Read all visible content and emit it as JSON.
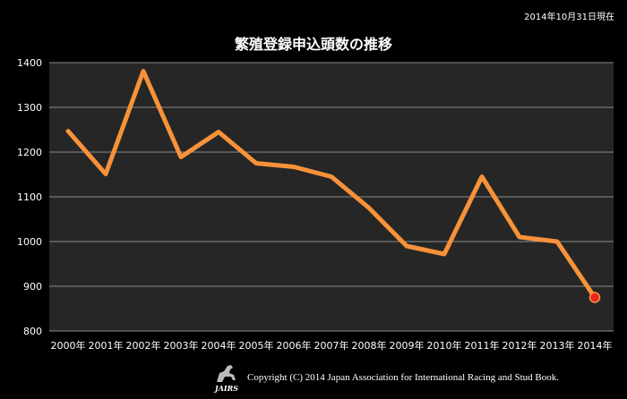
{
  "date_note": "2014年10月31日現在",
  "footer": {
    "logo_text": "JAIRS",
    "copyright": "Copyright (C) 2014 Japan Association for International Racing and Stud Book."
  },
  "colors": {
    "line": "#f7923a",
    "marker": "#e8251f",
    "background": "#000000",
    "plot_bg": "#262626",
    "grid": "#8a8a8a"
  },
  "chart_data": {
    "type": "line",
    "title": "繁殖登録申込頭数の推移",
    "xlabel": "",
    "ylabel": "",
    "categories": [
      "2000年",
      "2001年",
      "2002年",
      "2003年",
      "2004年",
      "2005年",
      "2006年",
      "2007年",
      "2008年",
      "2009年",
      "2010年",
      "2011年",
      "2012年",
      "2013年",
      "2014年"
    ],
    "series": [
      {
        "values": [
          1247,
          1151,
          1381,
          1189,
          1245,
          1175,
          1167,
          1145,
          1075,
          990,
          972,
          1145,
          1010,
          1000,
          875
        ]
      }
    ],
    "ylim": [
      800,
      1400
    ],
    "yticks": [
      800,
      900,
      1000,
      1100,
      1200,
      1300,
      1400
    ],
    "grid": true,
    "highlight_last_point": true
  }
}
